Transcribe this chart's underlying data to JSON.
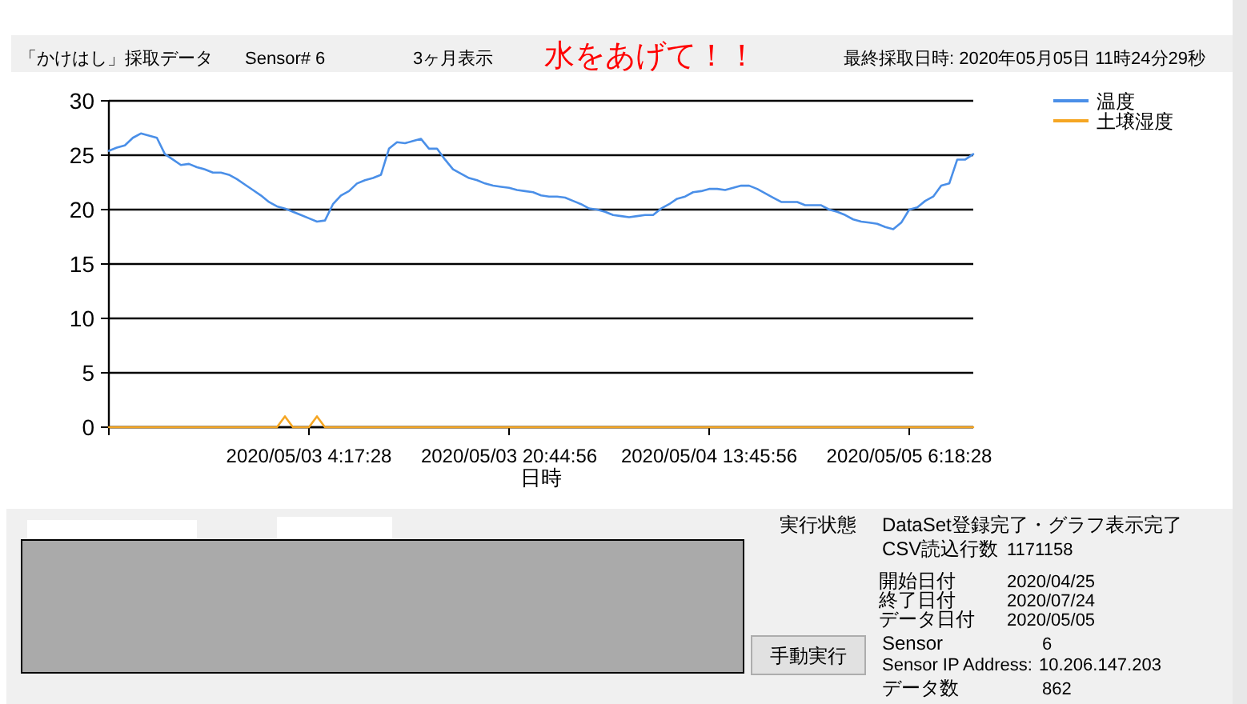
{
  "chart_data": {
    "type": "line",
    "xlabel": "日時",
    "categories": [
      null,
      null,
      null,
      null,
      null,
      null,
      null,
      null,
      null,
      null,
      null,
      null,
      null,
      null,
      null,
      null,
      null,
      null,
      null,
      null,
      null,
      null,
      null,
      null,
      null,
      "2020/05/03 4:17:28",
      null,
      null,
      null,
      null,
      null,
      null,
      null,
      null,
      null,
      null,
      null,
      null,
      null,
      null,
      null,
      null,
      null,
      null,
      null,
      null,
      null,
      null,
      null,
      null,
      "2020/05/03 20:44:56",
      null,
      null,
      null,
      null,
      null,
      null,
      null,
      null,
      null,
      null,
      null,
      null,
      null,
      null,
      null,
      null,
      null,
      null,
      null,
      null,
      null,
      null,
      null,
      null,
      "2020/05/04 13:45:56",
      null,
      null,
      null,
      null,
      null,
      null,
      null,
      null,
      null,
      null,
      null,
      null,
      null,
      null,
      null,
      null,
      null,
      null,
      null,
      null,
      null,
      null,
      null,
      null,
      "2020/05/05 6:18:28",
      null,
      null,
      null,
      null,
      null,
      null,
      null,
      null
    ],
    "series": [
      {
        "name": "温度",
        "color": "#4a8fe8",
        "values": [
          25.4,
          25.7,
          25.9,
          26.6,
          27.0,
          26.8,
          26.6,
          25.1,
          24.6,
          24.1,
          24.2,
          23.9,
          23.7,
          23.4,
          23.4,
          23.2,
          22.8,
          22.3,
          21.8,
          21.3,
          20.7,
          20.3,
          20.1,
          19.8,
          19.5,
          19.2,
          18.9,
          19.0,
          20.5,
          21.3,
          21.7,
          22.4,
          22.7,
          22.9,
          23.2,
          25.6,
          26.2,
          26.1,
          26.3,
          26.5,
          25.6,
          25.6,
          24.6,
          23.7,
          23.3,
          22.9,
          22.7,
          22.4,
          22.2,
          22.1,
          22.0,
          21.8,
          21.7,
          21.6,
          21.3,
          21.2,
          21.2,
          21.1,
          20.8,
          20.5,
          20.1,
          20.0,
          19.8,
          19.5,
          19.4,
          19.3,
          19.4,
          19.5,
          19.5,
          20.1,
          20.5,
          21.0,
          21.2,
          21.6,
          21.7,
          21.9,
          21.9,
          21.8,
          22.0,
          22.2,
          22.2,
          21.9,
          21.5,
          21.1,
          20.7,
          20.7,
          20.7,
          20.4,
          20.4,
          20.4,
          20.0,
          19.8,
          19.5,
          19.1,
          18.9,
          18.8,
          18.7,
          18.4,
          18.2,
          18.8,
          20.0,
          20.2,
          20.8,
          21.2,
          22.2,
          22.4,
          24.6,
          24.6,
          25.1
        ]
      },
      {
        "name": "土壌湿度",
        "color": "#f5a623",
        "values": [
          0,
          0,
          0,
          0,
          0,
          0,
          0,
          0,
          0,
          0,
          0,
          0,
          0,
          0,
          0,
          0,
          0,
          0,
          0,
          0,
          0,
          0,
          1,
          0,
          0,
          0,
          1,
          0,
          0,
          0,
          0,
          0,
          0,
          0,
          0,
          0,
          0,
          0,
          0,
          0,
          0,
          0,
          0,
          0,
          0,
          0,
          0,
          0,
          0,
          0,
          0,
          0,
          0,
          0,
          0,
          0,
          0,
          0,
          0,
          0,
          0,
          0,
          0,
          0,
          0,
          0,
          0,
          0,
          0,
          0,
          0,
          0,
          0,
          0,
          0,
          0,
          0,
          0,
          0,
          0,
          0,
          0,
          0,
          0,
          0,
          0,
          0,
          0,
          0,
          0,
          0,
          0,
          0,
          0,
          0,
          0,
          0,
          0,
          0,
          0,
          0,
          0,
          0,
          0,
          0,
          0,
          0,
          0,
          0
        ]
      }
    ],
    "ylim": [
      0,
      30
    ],
    "yticks": [
      0,
      5,
      10,
      15,
      20,
      25,
      30
    ],
    "grid": "y",
    "legend": "top right",
    "annotations": [
      "「かけはし」採取データ",
      "Sensor#  6",
      "3ヶ月表示",
      "水をあげて！！",
      "最終採取日時: 2020年05月05日 11時24分29秒",
      "実行状態",
      "DataSet登録完了・グラフ表示完了",
      "CSV読込行数",
      "1171158",
      "開始日付",
      "2020/04/25",
      "終了日付",
      "2020/07/24",
      "データ日付",
      "2020/05/05",
      "Sensor",
      "6",
      "Sensor IP Address:",
      "10.206.147.203",
      "データ数",
      "862",
      "手動実行"
    ]
  }
}
